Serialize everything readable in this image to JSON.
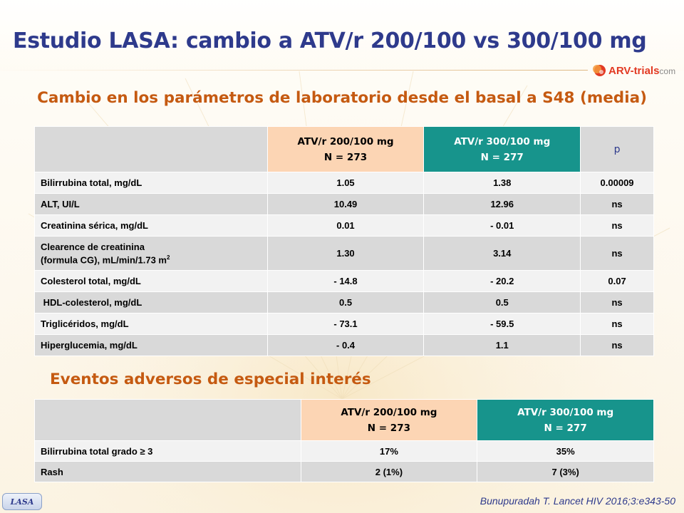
{
  "title": "Estudio LASA: cambio a ATV/r 200/100 vs 300/100 mg",
  "logo": {
    "text_main": "ARV-trials",
    "text_suffix": "com",
    "icon": "arv-trials-logo-icon"
  },
  "section1": {
    "subtitle": "Cambio en los parámetros de laboratorio desde el basal a S48 (media)",
    "headers": {
      "col200_line1": "ATV/r 200/100 mg",
      "col200_line2": "N = 273",
      "col300_line1": "ATV/r 300/100 mg",
      "col300_line2": "N = 277",
      "p": "p"
    },
    "rows": [
      {
        "label": "Bilirrubina total, mg/dL",
        "v200": "1.05",
        "v300": "1.38",
        "p": "0.00009"
      },
      {
        "label": "ALT, UI/L",
        "v200": "10.49",
        "v300": "12.96",
        "p": "ns"
      },
      {
        "label": "Creatinina sérica, mg/dL",
        "v200": "0.01",
        "v300": "- 0.01",
        "p": "ns"
      },
      {
        "label_line1": "Clearence de creatinina",
        "label_line2": "(formula CG), mL/min/1.73 m",
        "label_sup": "2",
        "v200": "1.30",
        "v300": "3.14",
        "p": "ns"
      },
      {
        "label": "Colesterol total, mg/dL",
        "v200": "- 14.8",
        "v300": "- 20.2",
        "p": "0.07"
      },
      {
        "label": " HDL-colesterol, mg/dL",
        "v200": "0.5",
        "v300": "0.5",
        "p": "ns"
      },
      {
        "label": "Triglicéridos, mg/dL",
        "v200": "- 73.1",
        "v300": "- 59.5",
        "p": "ns"
      },
      {
        "label": "Hiperglucemia, mg/dL",
        "v200": "- 0.4",
        "v300": "1.1",
        "p": "ns"
      }
    ]
  },
  "section2": {
    "subtitle": "Eventos adversos de especial interés",
    "headers": {
      "col200_line1": "ATV/r 200/100 mg",
      "col200_line2": "N = 273",
      "col300_line1": "ATV/r 300/100 mg",
      "col300_line2": "N = 277"
    },
    "rows": [
      {
        "label": "Bilirrubina total grado ≥ 3",
        "v200": "17%",
        "v300": "35%"
      },
      {
        "label": "Rash",
        "v200": "2 (1%)",
        "v300": "7 (3%)"
      }
    ]
  },
  "footer": {
    "badge": "LASA",
    "citation": "Bunupuradah T. Lancet HIV 2016;3:e343-50"
  },
  "colors": {
    "title": "#2e3a8c",
    "subtitle": "#c55a11",
    "col200": "#fcd5b4",
    "col300": "#17948c",
    "row_light": "#f2f2f2",
    "row_dark": "#d9d9d9"
  }
}
